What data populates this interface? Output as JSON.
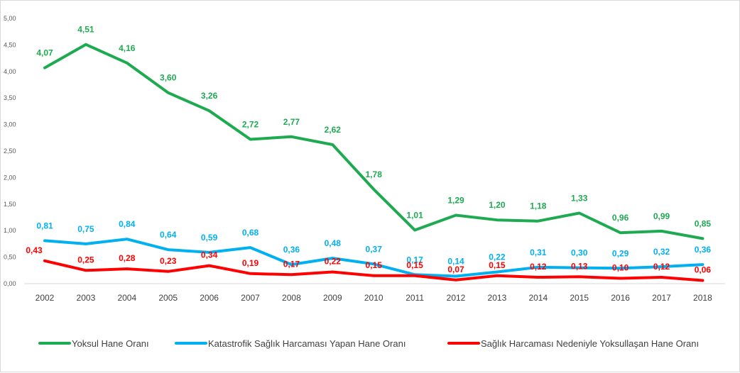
{
  "chart_data": {
    "type": "line",
    "title": "",
    "xlabel": "",
    "ylabel": "",
    "ylim": [
      0,
      5
    ],
    "grid": false,
    "legend_position": "bottom",
    "categories": [
      "2002",
      "2003",
      "2004",
      "2005",
      "2006",
      "2007",
      "2008",
      "2009",
      "2010",
      "2011",
      "2012",
      "2013",
      "2014",
      "2015",
      "2016",
      "2017",
      "2018"
    ],
    "y_ticks": [
      "0,00",
      "0,50",
      "1,00",
      "1,50",
      "2,00",
      "2,50",
      "3,00",
      "3,50",
      "4,00",
      "4,50",
      "5,00"
    ],
    "series": [
      {
        "name": "Yoksul Hane Oranı",
        "color": "#1eaa50",
        "values": [
          4.07,
          4.51,
          4.16,
          3.6,
          3.26,
          2.72,
          2.77,
          2.62,
          1.78,
          1.01,
          1.29,
          1.2,
          1.18,
          1.33,
          0.96,
          0.99,
          0.85
        ],
        "labels": [
          "4,07",
          "4,51",
          "4,16",
          "3,60",
          "3,26",
          "2,72",
          "2,77",
          "2,62",
          "1,78",
          "1,01",
          "1,29",
          "1,20",
          "1,18",
          "1,33",
          "0,96",
          "0,99",
          "0,85"
        ]
      },
      {
        "name": "Katastrofik Sağlık Harcaması Yapan Hane Oranı",
        "color": "#00b0f0",
        "values": [
          0.81,
          0.75,
          0.84,
          0.64,
          0.59,
          0.68,
          0.36,
          0.48,
          0.37,
          0.17,
          0.14,
          0.22,
          0.31,
          0.3,
          0.29,
          0.32,
          0.36
        ],
        "labels": [
          "0,81",
          "0,75",
          "0,84",
          "0,64",
          "0,59",
          "0,68",
          "0,36",
          "0,48",
          "0,37",
          "0,17",
          "0,14",
          "0,22",
          "0,31",
          "0,30",
          "0,29",
          "0,32",
          "0,36"
        ]
      },
      {
        "name": "Sağlık Harcaması Nedeniyle Yoksullaşan Hane Oranı",
        "color": "#ff0000",
        "values": [
          0.43,
          0.25,
          0.28,
          0.23,
          0.34,
          0.19,
          0.17,
          0.22,
          0.15,
          0.15,
          0.07,
          0.15,
          0.12,
          0.13,
          0.1,
          0.12,
          0.06
        ],
        "labels": [
          "0,43",
          "0,25",
          "0,28",
          "0,23",
          "0,34",
          "0,19",
          "0,17",
          "0,22",
          "0,15",
          "0,15",
          "0,07",
          "0,15",
          "0,12",
          "0,13",
          "0,10",
          "0,12",
          "0,06"
        ]
      }
    ]
  }
}
